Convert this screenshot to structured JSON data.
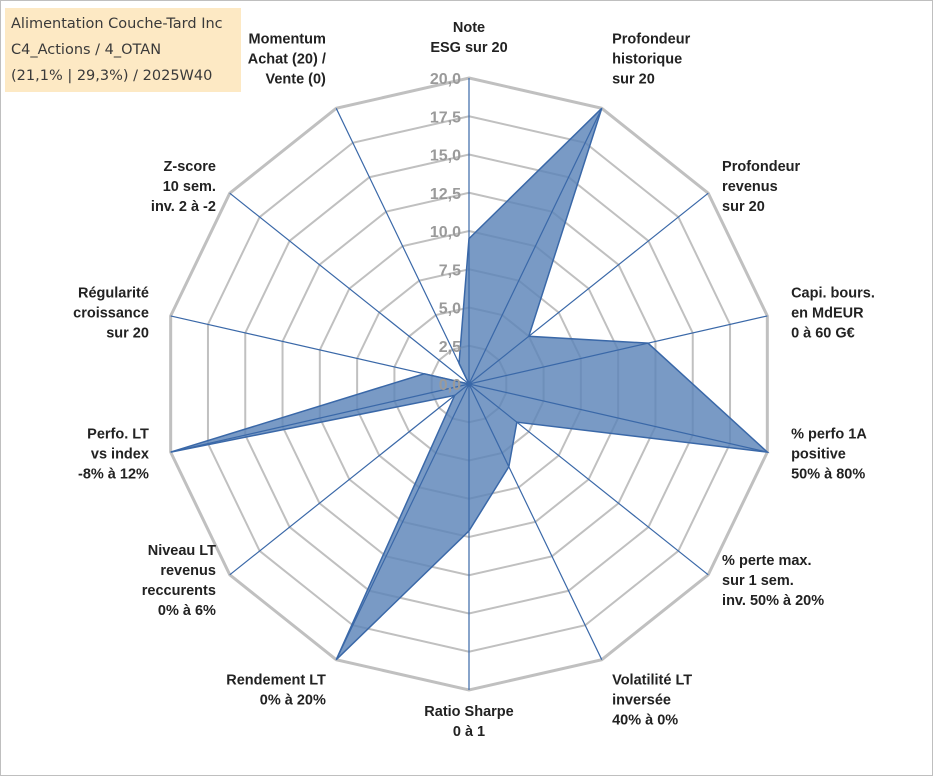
{
  "info_box": {
    "line1": "Alimentation Couche-Tard Inc",
    "line2": "C4_Actions / 4_OTAN",
    "line3": "(21,1% | 29,3%) / 2025W40"
  },
  "chart_data": {
    "type": "radar",
    "title": "",
    "axes": [
      [
        "Note",
        "ESG sur 20"
      ],
      [
        "Profondeur",
        "historique",
        "sur 20"
      ],
      [
        "Profondeur",
        "revenus",
        "sur 20"
      ],
      [
        "Capi. bours.",
        "en MdEUR",
        "0 à 60 G€"
      ],
      [
        "% perfo 1A",
        "positive",
        "50% à 80%"
      ],
      [
        "% perte max.",
        "sur 1 sem.",
        "inv. 50% à 20%"
      ],
      [
        "Volatilité LT",
        "inversée",
        "40% à 0%"
      ],
      [
        "Ratio Sharpe",
        "0 à 1"
      ],
      [
        "Rendement LT",
        "0% à 20%"
      ],
      [
        "Niveau LT",
        "revenus",
        "reccurents",
        "0% à 6%"
      ],
      [
        "Perfo. LT",
        "vs index",
        "-8% à 12%"
      ],
      [
        "Régularité",
        "croissance",
        "sur 20"
      ],
      [
        "Z-score",
        "10 sem.",
        "inv. 2 à -2"
      ],
      [
        "Momentum",
        "Achat (20) /",
        "Vente (0)"
      ]
    ],
    "values": [
      9.5,
      20,
      5,
      12,
      20,
      4,
      6,
      9.6,
      20,
      1.2,
      20,
      3,
      0,
      1.5
    ],
    "range": [
      0,
      20
    ],
    "ticks": [
      "0,0",
      "2,5",
      "5,0",
      "7,5",
      "10,0",
      "12,5",
      "15,0",
      "17,5",
      "20,0"
    ],
    "grid": true,
    "colors": {
      "fill": "#5b84b8",
      "line": "#3a68a8",
      "grid": "#c0c0c0",
      "spoke": "#3a68a8"
    }
  }
}
